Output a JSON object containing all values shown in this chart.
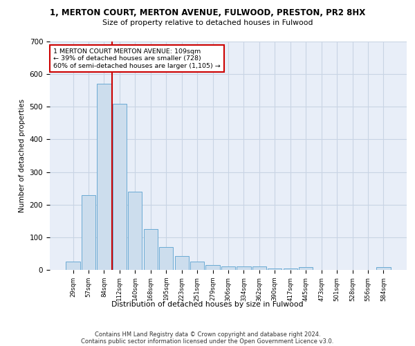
{
  "title": "1, MERTON COURT, MERTON AVENUE, FULWOOD, PRESTON, PR2 8HX",
  "subtitle": "Size of property relative to detached houses in Fulwood",
  "xlabel": "Distribution of detached houses by size in Fulwood",
  "ylabel": "Number of detached properties",
  "bar_color": "#ccdded",
  "bar_edge_color": "#6aaad4",
  "grid_color": "#c8d4e4",
  "background_color": "#e8eef8",
  "categories": [
    "29sqm",
    "57sqm",
    "84sqm",
    "112sqm",
    "140sqm",
    "168sqm",
    "195sqm",
    "223sqm",
    "251sqm",
    "279sqm",
    "306sqm",
    "334sqm",
    "362sqm",
    "390sqm",
    "417sqm",
    "445sqm",
    "473sqm",
    "501sqm",
    "528sqm",
    "556sqm",
    "584sqm"
  ],
  "values": [
    25,
    230,
    570,
    510,
    240,
    125,
    70,
    42,
    25,
    15,
    10,
    10,
    10,
    5,
    5,
    8,
    0,
    0,
    0,
    0,
    8
  ],
  "annotation_line1": "1 MERTON COURT MERTON AVENUE: 109sqm",
  "annotation_line2": "← 39% of detached houses are smaller (728)",
  "annotation_line3": "60% of semi-detached houses are larger (1,105) →",
  "vline_color": "#cc0000",
  "vline_bin": 3,
  "ylim": [
    0,
    700
  ],
  "yticks": [
    0,
    100,
    200,
    300,
    400,
    500,
    600,
    700
  ],
  "footer1": "Contains HM Land Registry data © Crown copyright and database right 2024.",
  "footer2": "Contains public sector information licensed under the Open Government Licence v3.0."
}
